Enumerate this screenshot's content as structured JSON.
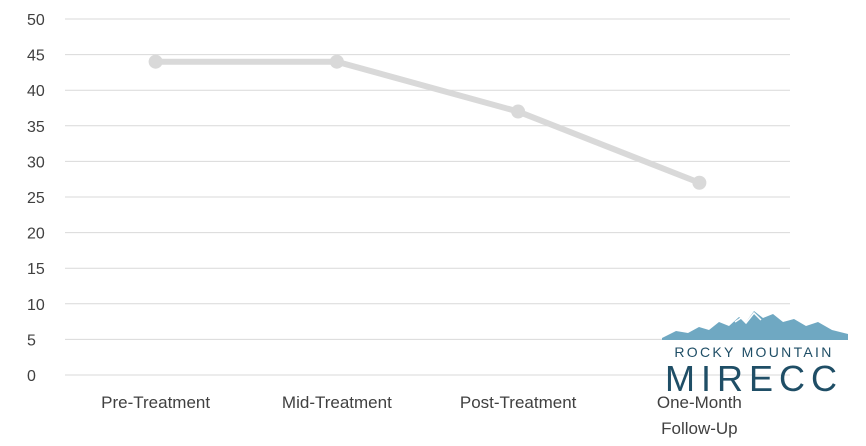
{
  "chart_data": {
    "type": "line",
    "categories": [
      "Pre-Treatment",
      "Mid-Treatment",
      "Post-Treatment",
      "One-Month Follow-Up"
    ],
    "category_lines": [
      [
        "Pre-Treatment"
      ],
      [
        "Mid-Treatment"
      ],
      [
        "Post-Treatment"
      ],
      [
        "One-Month",
        "Follow-Up"
      ]
    ],
    "series": [
      {
        "values": [
          44,
          44,
          37,
          27
        ],
        "color": "#d9d9d9"
      }
    ],
    "ylim": [
      0,
      50
    ],
    "yticks": [
      0,
      5,
      10,
      15,
      20,
      25,
      30,
      35,
      40,
      45,
      50
    ],
    "grid": true,
    "gridline_color": "#d9d9d9",
    "title": "",
    "xlabel": "",
    "ylabel": ""
  },
  "logo": {
    "line1": "ROCKY MOUNTAIN",
    "line2": "MIRECC",
    "colors": {
      "mountain": "#6fa8c2",
      "text": "#1f4e66"
    }
  }
}
